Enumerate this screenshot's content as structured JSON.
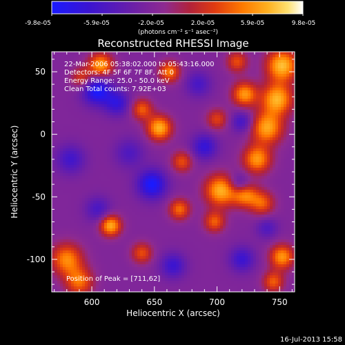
{
  "colorbar": {
    "tick_labels": [
      "-9.8e-05",
      "-5.9e-05",
      "-2.0e-05",
      "2.0e-05",
      "5.9e-05",
      "9.8e-05"
    ],
    "unit_label": "(photons cm⁻² s⁻¹ asec⁻²)",
    "colors": [
      "#1a1aff",
      "#3b14d0",
      "#6a1fa8",
      "#8e2a90",
      "#b2223a",
      "#e03b10",
      "#ff7a00",
      "#ffb020",
      "#ffe070",
      "#ffffff"
    ]
  },
  "plot": {
    "title": "Reconstructed RHESSI Image",
    "info_lines": [
      "22-Mar-2006 05:38:02.000 to 05:43:16.000",
      "Detectors: 4F 5F 6F 7F 8F, Att 0",
      "Energy Range: 25.0 - 50.0 keV",
      "Clean    Total counts: 7.92E+03"
    ],
    "peak_label": "Position of Peak = [711,62]"
  },
  "timestamp": "16-Jul-2013 15:58",
  "chart_data": {
    "type": "heatmap",
    "title": "Reconstructed RHESSI Image",
    "xlabel": "Heliocentric X (arcsec)",
    "ylabel": "Heliocentric Y (arcsec)",
    "xlim": [
      568,
      762
    ],
    "ylim": [
      -126,
      66
    ],
    "xticks": [
      600,
      650,
      700,
      750
    ],
    "yticks": [
      -100,
      -50,
      0,
      50
    ],
    "colorbar_range": [
      -9.8e-05,
      9.8e-05
    ],
    "colorbar_ticks": [
      -9.8e-05,
      -5.9e-05,
      -2e-05,
      2e-05,
      5.9e-05,
      9.8e-05
    ],
    "peak_position": [
      711,
      62
    ],
    "blobs": [
      {
        "x": 752,
        "y": 55,
        "v": 0.95,
        "s": 9
      },
      {
        "x": 748,
        "y": 28,
        "v": 0.9,
        "s": 9
      },
      {
        "x": 740,
        "y": 5,
        "v": 0.85,
        "s": 9
      },
      {
        "x": 732,
        "y": -20,
        "v": 0.8,
        "s": 8
      },
      {
        "x": 722,
        "y": 32,
        "v": 0.8,
        "s": 7
      },
      {
        "x": 716,
        "y": 58,
        "v": 0.55,
        "s": 6
      },
      {
        "x": 703,
        "y": -45,
        "v": 0.9,
        "s": 9
      },
      {
        "x": 722,
        "y": -48,
        "v": 0.75,
        "s": 7
      },
      {
        "x": 698,
        "y": -70,
        "v": 0.6,
        "s": 6
      },
      {
        "x": 736,
        "y": -55,
        "v": 0.6,
        "s": 7
      },
      {
        "x": 752,
        "y": -98,
        "v": 0.8,
        "s": 7
      },
      {
        "x": 745,
        "y": -118,
        "v": 0.6,
        "s": 6
      },
      {
        "x": 672,
        "y": -22,
        "v": 0.55,
        "s": 6
      },
      {
        "x": 670,
        "y": -60,
        "v": 0.65,
        "s": 6
      },
      {
        "x": 654,
        "y": 5,
        "v": 0.9,
        "s": 7
      },
      {
        "x": 640,
        "y": 20,
        "v": 0.6,
        "s": 6
      },
      {
        "x": 662,
        "y": 50,
        "v": 0.7,
        "s": 6
      },
      {
        "x": 607,
        "y": 55,
        "v": 0.85,
        "s": 7
      },
      {
        "x": 592,
        "y": 45,
        "v": 0.5,
        "s": 6
      },
      {
        "x": 615,
        "y": -73,
        "v": 0.9,
        "s": 6
      },
      {
        "x": 640,
        "y": -95,
        "v": 0.55,
        "s": 6
      },
      {
        "x": 580,
        "y": -100,
        "v": 0.75,
        "s": 9
      },
      {
        "x": 590,
        "y": -118,
        "v": 0.65,
        "s": 8
      },
      {
        "x": 700,
        "y": 12,
        "v": 0.5,
        "s": 6
      },
      {
        "x": 604,
        "y": 35,
        "v": -0.8,
        "s": 8
      },
      {
        "x": 620,
        "y": 25,
        "v": -0.55,
        "s": 7
      },
      {
        "x": 648,
        "y": -40,
        "v": -0.8,
        "s": 8
      },
      {
        "x": 690,
        "y": -10,
        "v": -0.55,
        "s": 7
      },
      {
        "x": 718,
        "y": -40,
        "v": -0.5,
        "s": 6
      },
      {
        "x": 720,
        "y": 10,
        "v": -0.45,
        "s": 6
      },
      {
        "x": 583,
        "y": -20,
        "v": -0.45,
        "s": 8
      },
      {
        "x": 720,
        "y": -100,
        "v": -0.5,
        "s": 7
      },
      {
        "x": 665,
        "y": -105,
        "v": -0.5,
        "s": 7
      },
      {
        "x": 630,
        "y": -15,
        "v": -0.35,
        "s": 8
      },
      {
        "x": 685,
        "y": 40,
        "v": -0.4,
        "s": 7
      },
      {
        "x": 605,
        "y": -60,
        "v": -0.4,
        "s": 7
      },
      {
        "x": 740,
        "y": -75,
        "v": -0.35,
        "s": 6
      }
    ]
  }
}
